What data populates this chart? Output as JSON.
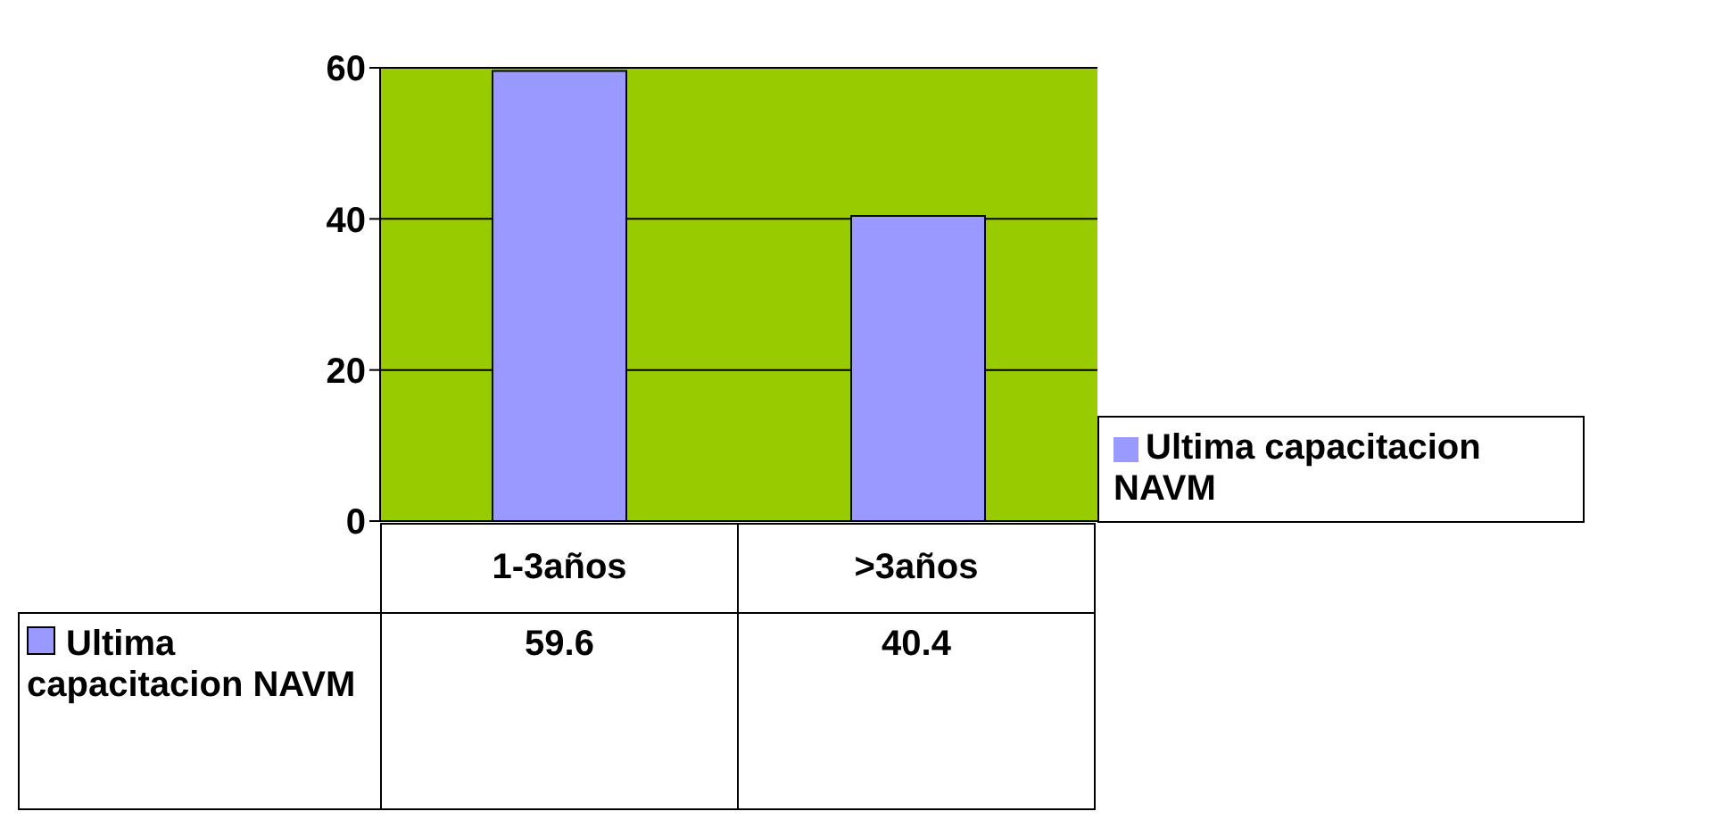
{
  "chart_data": {
    "type": "bar",
    "categories": [
      "1-3años",
      ">3años"
    ],
    "series": [
      {
        "name": "Ultima capacitacion NAVM",
        "color": "#9999ff",
        "values": [
          59.6,
          40.4
        ]
      }
    ],
    "ylim": [
      0,
      60
    ],
    "yticks": [
      0,
      20,
      40,
      60
    ],
    "grid": "y",
    "legend": "right",
    "data_labels": true
  }
}
